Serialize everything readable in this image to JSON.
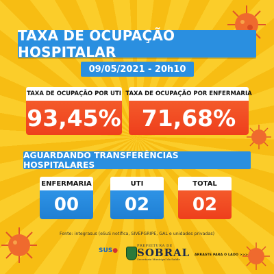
{
  "title": "TAXA DE OCUPAÇÃO HOSPITALAR",
  "date": "09/05/2021 - 20h10",
  "uti_card": {
    "label": "TAXA DE OCUPAÇÃO POR UTI",
    "value": "93,45%"
  },
  "enfermaria_card": {
    "label": "TAXA DE OCUPAÇÃO POR ENFERMARIA",
    "value": "71,68%"
  },
  "waiting_title": "AGUARDANDO TRANSFERÊNCIAS HOSPITALARES",
  "waiting": [
    {
      "label": "ENFERMARIA",
      "value": "00"
    },
    {
      "label": "UTI",
      "value": "02"
    },
    {
      "label": "TOTAL",
      "value": "02"
    }
  ],
  "source": "Fonte: integrasus (eSuS notifica, SIVEPGRIPE, GAL e unidades privadas)",
  "footer": {
    "sus_label": "SUS",
    "pref_top": "PREFEITURA DE",
    "pref_main": "SOBRAL",
    "pref_sub": "Secretaria Municipal da Saúde",
    "swipe": "ARRASTE PARA O LADO >>>"
  },
  "colors": {
    "background": "#f9c41a",
    "blue": "#2a8fe0",
    "orange": "#ee3f1c"
  }
}
